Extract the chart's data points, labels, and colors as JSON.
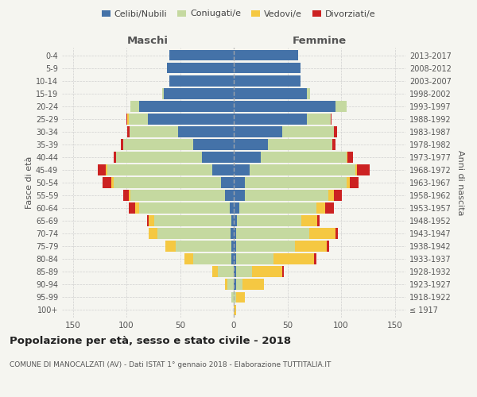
{
  "age_groups": [
    "100+",
    "95-99",
    "90-94",
    "85-89",
    "80-84",
    "75-79",
    "70-74",
    "65-69",
    "60-64",
    "55-59",
    "50-54",
    "45-49",
    "40-44",
    "35-39",
    "30-34",
    "25-29",
    "20-24",
    "15-19",
    "10-14",
    "5-9",
    "0-4"
  ],
  "birth_years": [
    "≤ 1917",
    "1918-1922",
    "1923-1927",
    "1928-1932",
    "1933-1937",
    "1938-1942",
    "1943-1947",
    "1948-1952",
    "1953-1957",
    "1958-1962",
    "1963-1967",
    "1968-1972",
    "1973-1977",
    "1978-1982",
    "1983-1987",
    "1988-1992",
    "1993-1997",
    "1998-2002",
    "2003-2007",
    "2008-2012",
    "2013-2017"
  ],
  "male_celibi": [
    0,
    0,
    0,
    0,
    2,
    2,
    3,
    2,
    4,
    8,
    12,
    20,
    30,
    38,
    52,
    80,
    88,
    65,
    60,
    62,
    60
  ],
  "male_coniugati": [
    0,
    2,
    6,
    15,
    36,
    52,
    68,
    72,
    84,
    88,
    100,
    98,
    80,
    65,
    45,
    18,
    8,
    2,
    0,
    0,
    0
  ],
  "male_vedovi": [
    0,
    0,
    2,
    5,
    8,
    10,
    8,
    5,
    4,
    2,
    2,
    1,
    0,
    0,
    0,
    1,
    0,
    0,
    0,
    0,
    0
  ],
  "male_divorziati": [
    0,
    0,
    0,
    0,
    0,
    0,
    0,
    2,
    6,
    5,
    8,
    8,
    2,
    2,
    2,
    1,
    0,
    0,
    0,
    0,
    0
  ],
  "female_nubili": [
    0,
    0,
    2,
    2,
    2,
    2,
    2,
    3,
    5,
    10,
    10,
    15,
    25,
    32,
    45,
    68,
    95,
    68,
    62,
    62,
    60
  ],
  "female_coniugate": [
    0,
    2,
    6,
    15,
    35,
    55,
    68,
    60,
    72,
    78,
    95,
    98,
    80,
    60,
    48,
    22,
    10,
    3,
    0,
    0,
    0
  ],
  "female_vedove": [
    2,
    8,
    20,
    28,
    38,
    30,
    25,
    15,
    8,
    5,
    3,
    2,
    1,
    0,
    0,
    0,
    0,
    0,
    0,
    0,
    0
  ],
  "female_divorziate": [
    0,
    0,
    0,
    2,
    2,
    2,
    2,
    2,
    8,
    8,
    8,
    12,
    5,
    3,
    3,
    1,
    0,
    0,
    0,
    0,
    0
  ],
  "color_celibi": "#4472a8",
  "color_coniugati": "#c5d9a0",
  "color_vedovi": "#f5c842",
  "color_divorziati": "#cc2222",
  "xlim": 160,
  "title": "Popolazione per età, sesso e stato civile - 2018",
  "subtitle": "COMUNE DI MANOCALZATI (AV) - Dati ISTAT 1° gennaio 2018 - Elaborazione TUTTITALIA.IT",
  "ylabel_left": "Fasce di età",
  "ylabel_right": "Anni di nascita",
  "label_maschi": "Maschi",
  "label_femmine": "Femmine",
  "legend_celibi": "Celibi/Nubili",
  "legend_coniugati": "Coniugati/e",
  "legend_vedovi": "Vedovi/e",
  "legend_divorziati": "Divorziati/e",
  "bg_color": "#f5f5f0"
}
